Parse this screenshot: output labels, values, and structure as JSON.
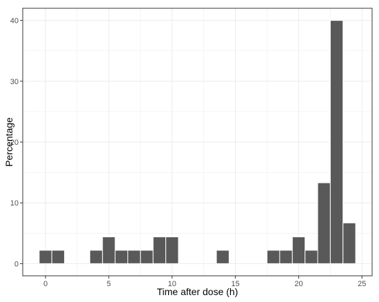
{
  "chart_data": {
    "type": "bar",
    "title": "",
    "xlabel": "Time after dose (h)",
    "ylabel": "Percentage",
    "xlim": [
      -1.8,
      25.8
    ],
    "ylim": [
      -2,
      42
    ],
    "x_ticks": [
      0,
      5,
      10,
      15,
      20,
      25
    ],
    "y_ticks": [
      0,
      10,
      20,
      30,
      40
    ],
    "bin_width": 1,
    "grid": true,
    "legend": "none",
    "colors": {
      "bar_fill": "#595959",
      "bar_edge": "#ffffff",
      "panel_border": "#333333",
      "grid": "#ebebeb"
    },
    "bins": [
      {
        "x": 0,
        "value": 2.2
      },
      {
        "x": 1,
        "value": 2.2
      },
      {
        "x": 4,
        "value": 2.2
      },
      {
        "x": 5,
        "value": 4.4
      },
      {
        "x": 6,
        "value": 2.2
      },
      {
        "x": 7,
        "value": 2.2
      },
      {
        "x": 8,
        "value": 2.2
      },
      {
        "x": 9,
        "value": 4.4
      },
      {
        "x": 10,
        "value": 4.4
      },
      {
        "x": 14,
        "value": 2.2
      },
      {
        "x": 18,
        "value": 2.2
      },
      {
        "x": 19,
        "value": 2.2
      },
      {
        "x": 20,
        "value": 4.4
      },
      {
        "x": 21,
        "value": 2.2
      },
      {
        "x": 22,
        "value": 13.3
      },
      {
        "x": 23,
        "value": 40.0
      },
      {
        "x": 24,
        "value": 6.7
      }
    ]
  }
}
